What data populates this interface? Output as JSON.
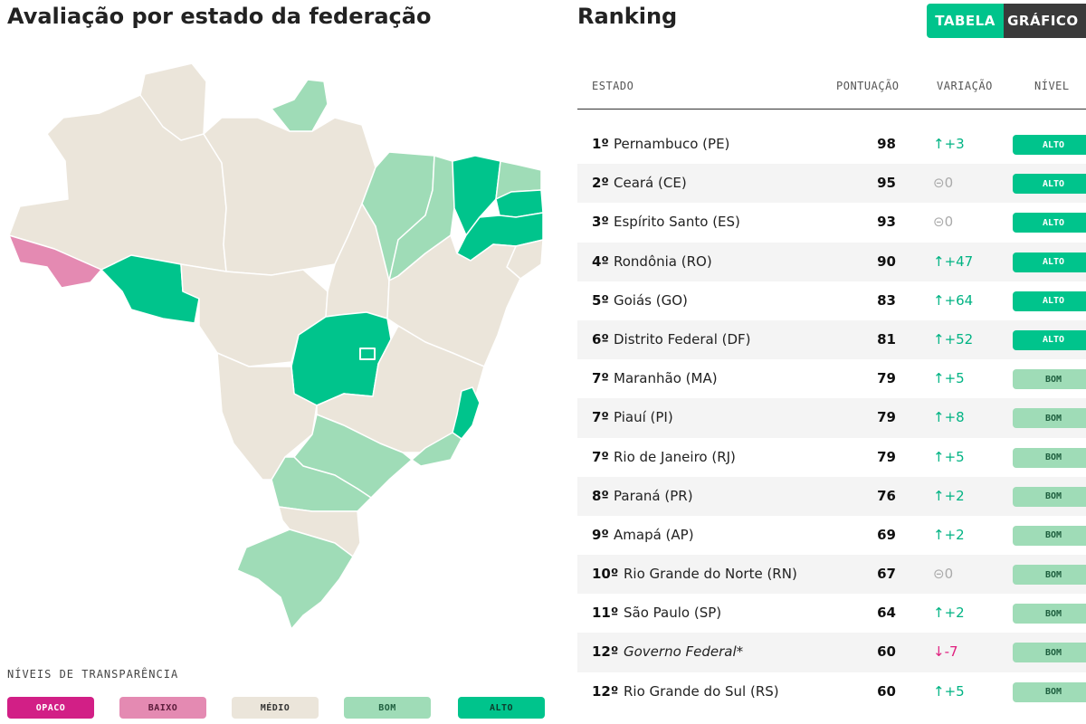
{
  "map": {
    "title": "Avaliação por estado da federação"
  },
  "legend": {
    "title": "NÍVEIS DE TRANSPARÊNCIA",
    "levels": [
      {
        "label": "OPACO",
        "color": "#d21f86"
      },
      {
        "label": "BAIXO",
        "color": "#e48ab2"
      },
      {
        "label": "MÉDIO",
        "color": "#ebe5da"
      },
      {
        "label": "BOM",
        "color": "#9fdcb7"
      },
      {
        "label": "ALTO",
        "color": "#00c48c"
      }
    ]
  },
  "ranking": {
    "title": "Ranking",
    "toggle": {
      "table_label": "TABELA",
      "chart_label": "GRÁFICO"
    },
    "columns": {
      "state": "ESTADO",
      "score": "PONTUAÇÃO",
      "variation": "VARIAÇÃO",
      "level": "NÍVEL"
    },
    "rows": [
      {
        "pos": "1º",
        "name": "Pernambuco (PE)",
        "score": "98",
        "variation": "↑+3",
        "trend": "up",
        "level": "ALTO"
      },
      {
        "pos": "2º",
        "name": "Ceará (CE)",
        "score": "95",
        "variation": "⊝0",
        "trend": "zero",
        "level": "ALTO"
      },
      {
        "pos": "3º",
        "name": "Espírito Santo (ES)",
        "score": "93",
        "variation": "⊝0",
        "trend": "zero",
        "level": "ALTO"
      },
      {
        "pos": "4º",
        "name": "Rondônia (RO)",
        "score": "90",
        "variation": "↑+47",
        "trend": "up",
        "level": "ALTO"
      },
      {
        "pos": "5º",
        "name": "Goiás (GO)",
        "score": "83",
        "variation": "↑+64",
        "trend": "up",
        "level": "ALTO"
      },
      {
        "pos": "6º",
        "name": "Distrito Federal (DF)",
        "score": "81",
        "variation": "↑+52",
        "trend": "up",
        "level": "ALTO"
      },
      {
        "pos": "7º",
        "name": "Maranhão (MA)",
        "score": "79",
        "variation": "↑+5",
        "trend": "up",
        "level": "BOM"
      },
      {
        "pos": "7º",
        "name": "Piauí (PI)",
        "score": "79",
        "variation": "↑+8",
        "trend": "up",
        "level": "BOM"
      },
      {
        "pos": "7º",
        "name": "Rio de Janeiro (RJ)",
        "score": "79",
        "variation": "↑+5",
        "trend": "up",
        "level": "BOM"
      },
      {
        "pos": "8º",
        "name": "Paraná (PR)",
        "score": "76",
        "variation": "↑+2",
        "trend": "up",
        "level": "BOM"
      },
      {
        "pos": "9º",
        "name": "Amapá (AP)",
        "score": "69",
        "variation": "↑+2",
        "trend": "up",
        "level": "BOM"
      },
      {
        "pos": "10º",
        "name": "Rio Grande do Norte (RN)",
        "score": "67",
        "variation": "⊝0",
        "trend": "zero",
        "level": "BOM"
      },
      {
        "pos": "11º",
        "name": "São Paulo (SP)",
        "score": "64",
        "variation": "↑+2",
        "trend": "up",
        "level": "BOM"
      },
      {
        "pos": "12º",
        "name": "Governo Federal*",
        "score": "60",
        "variation": "↓-7",
        "trend": "down",
        "level": "BOM"
      },
      {
        "pos": "12º",
        "name": "Rio Grande do Sul (RS)",
        "score": "60",
        "variation": "↑+5",
        "trend": "up",
        "level": "BOM"
      }
    ]
  }
}
